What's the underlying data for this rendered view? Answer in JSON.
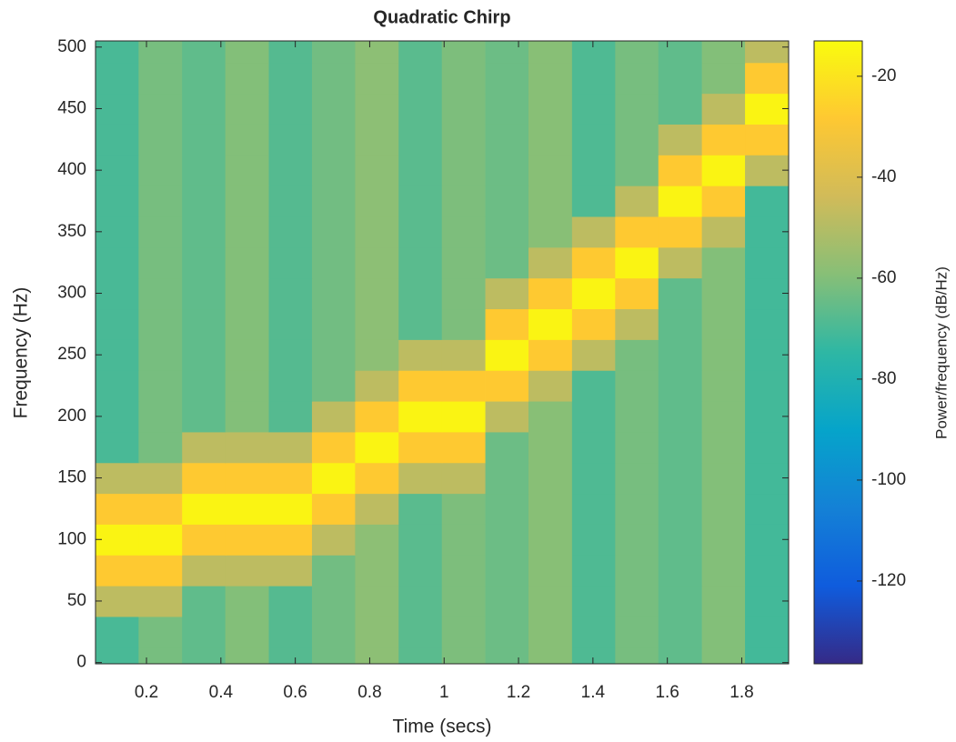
{
  "chart_data": {
    "type": "heatmap",
    "title": "Quadratic Chirp",
    "xlabel": "Time (secs)",
    "ylabel": "Frequency (Hz)",
    "colorbar_label": "Power/frequency (dB/Hz)",
    "x": [
      0.121,
      0.237,
      0.354,
      0.47,
      0.587,
      0.703,
      0.819,
      0.936,
      1.052,
      1.169,
      1.285,
      1.402,
      1.518,
      1.634,
      1.751,
      1.867
    ],
    "y": [
      0,
      25,
      50,
      75,
      100,
      125,
      150,
      175,
      200,
      225,
      250,
      275,
      300,
      325,
      350,
      375,
      400,
      425,
      450,
      475,
      500
    ],
    "z": [
      [
        -70,
        -62,
        -66,
        -60,
        -68,
        -63,
        -58,
        -67,
        -61,
        -64,
        -59,
        -69,
        -62,
        -66,
        -60,
        -71
      ],
      [
        -70,
        -62,
        -66,
        -60,
        -68,
        -63,
        -58,
        -67,
        -61,
        -64,
        -59,
        -69,
        -62,
        -66,
        -60,
        -71
      ],
      [
        -48,
        -48,
        -66,
        -60,
        -68,
        -63,
        -58,
        -67,
        -61,
        -64,
        -59,
        -69,
        -62,
        -66,
        -60,
        -71
      ],
      [
        -28,
        -28,
        -48,
        -48,
        -48,
        -63,
        -58,
        -67,
        -61,
        -64,
        -59,
        -69,
        -62,
        -66,
        -60,
        -71
      ],
      [
        -15,
        -15,
        -28,
        -28,
        -28,
        -48,
        -58,
        -67,
        -61,
        -64,
        -59,
        -69,
        -62,
        -66,
        -60,
        -71
      ],
      [
        -28,
        -28,
        -15,
        -15,
        -15,
        -28,
        -48,
        -67,
        -61,
        -64,
        -59,
        -69,
        -62,
        -66,
        -60,
        -71
      ],
      [
        -48,
        -48,
        -28,
        -28,
        -28,
        -15,
        -28,
        -48,
        -48,
        -64,
        -59,
        -69,
        -62,
        -66,
        -60,
        -71
      ],
      [
        -70,
        -62,
        -48,
        -48,
        -48,
        -28,
        -15,
        -28,
        -28,
        -64,
        -59,
        -69,
        -62,
        -66,
        -60,
        -71
      ],
      [
        -70,
        -62,
        -66,
        -60,
        -68,
        -48,
        -28,
        -15,
        -15,
        -48,
        -59,
        -69,
        -62,
        -66,
        -60,
        -71
      ],
      [
        -70,
        -62,
        -66,
        -60,
        -68,
        -63,
        -48,
        -28,
        -28,
        -28,
        -48,
        -69,
        -62,
        -66,
        -60,
        -71
      ],
      [
        -70,
        -62,
        -66,
        -60,
        -68,
        -63,
        -58,
        -48,
        -48,
        -15,
        -28,
        -48,
        -62,
        -66,
        -60,
        -71
      ],
      [
        -70,
        -62,
        -66,
        -60,
        -68,
        -63,
        -58,
        -67,
        -61,
        -28,
        -15,
        -28,
        -48,
        -66,
        -60,
        -71
      ],
      [
        -70,
        -62,
        -66,
        -60,
        -68,
        -63,
        -58,
        -67,
        -61,
        -48,
        -28,
        -15,
        -28,
        -66,
        -60,
        -71
      ],
      [
        -70,
        -62,
        -66,
        -60,
        -68,
        -63,
        -58,
        -67,
        -61,
        -64,
        -48,
        -28,
        -15,
        -48,
        -60,
        -71
      ],
      [
        -70,
        -62,
        -66,
        -60,
        -68,
        -63,
        -58,
        -67,
        -61,
        -64,
        -59,
        -48,
        -28,
        -28,
        -48,
        -71
      ],
      [
        -70,
        -62,
        -66,
        -60,
        -68,
        -63,
        -58,
        -67,
        -61,
        -64,
        -59,
        -69,
        -48,
        -15,
        -28,
        -71
      ],
      [
        -70,
        -62,
        -66,
        -60,
        -68,
        -63,
        -58,
        -67,
        -61,
        -64,
        -59,
        -69,
        -62,
        -28,
        -15,
        -48
      ],
      [
        -70,
        -62,
        -66,
        -60,
        -68,
        -63,
        -58,
        -67,
        -61,
        -64,
        -59,
        -69,
        -62,
        -48,
        -28,
        -28
      ],
      [
        -70,
        -62,
        -66,
        -60,
        -68,
        -63,
        -58,
        -67,
        -61,
        -64,
        -59,
        -69,
        -62,
        -66,
        -48,
        -15
      ],
      [
        -70,
        -62,
        -66,
        -60,
        -68,
        -63,
        -58,
        -67,
        -61,
        -64,
        -59,
        -69,
        -62,
        -66,
        -60,
        -28
      ],
      [
        -70,
        -62,
        -66,
        -60,
        -68,
        -63,
        -58,
        -67,
        -61,
        -64,
        -59,
        -69,
        -62,
        -66,
        -60,
        -48
      ]
    ],
    "xlim": [
      0.063,
      1.926
    ],
    "ylim": [
      -1,
      505
    ],
    "xticks": [
      0.2,
      0.4,
      0.6,
      0.8,
      1,
      1.2,
      1.4,
      1.6,
      1.8
    ],
    "yticks": [
      0,
      50,
      100,
      150,
      200,
      250,
      300,
      350,
      400,
      450,
      500
    ],
    "clim": [
      -136.4,
      -13
    ],
    "cticks": [
      -120,
      -100,
      -80,
      -60,
      -40,
      -20
    ],
    "colormap": [
      "#352a87",
      "#0f5cdd",
      "#1481d6",
      "#06a4ca",
      "#2eb7a4",
      "#87bf77",
      "#d1bb59",
      "#fec832",
      "#f9fb0e"
    ]
  }
}
